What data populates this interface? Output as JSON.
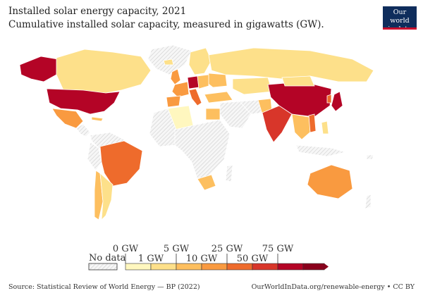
{
  "title": "Installed solar energy capacity, 2021",
  "subtitle": "Cumulative installed solar capacity, measured in gigawatts (GW).",
  "logo": {
    "line1": "Our world",
    "line2": "in data"
  },
  "legend": {
    "no_data_label": "No data",
    "upper_ticks": [
      "0 GW",
      "5 GW",
      "25 GW",
      "75 GW"
    ],
    "lower_ticks": [
      "1 GW",
      "10 GW",
      "50 GW"
    ],
    "colors": [
      "#fff7bf",
      "#fde08a",
      "#fdbf5f",
      "#f99a40",
      "#ee6b2c",
      "#d8362a",
      "#b40426",
      "#8a001c"
    ]
  },
  "footer": {
    "source": "Source: Statistical Review of World Energy — BP (2022)",
    "attribution": "OurWorldInData.org/renewable-energy • CC BY"
  },
  "map_colors": {
    "nodata": "#ececec",
    "border": "#ffffff"
  }
}
